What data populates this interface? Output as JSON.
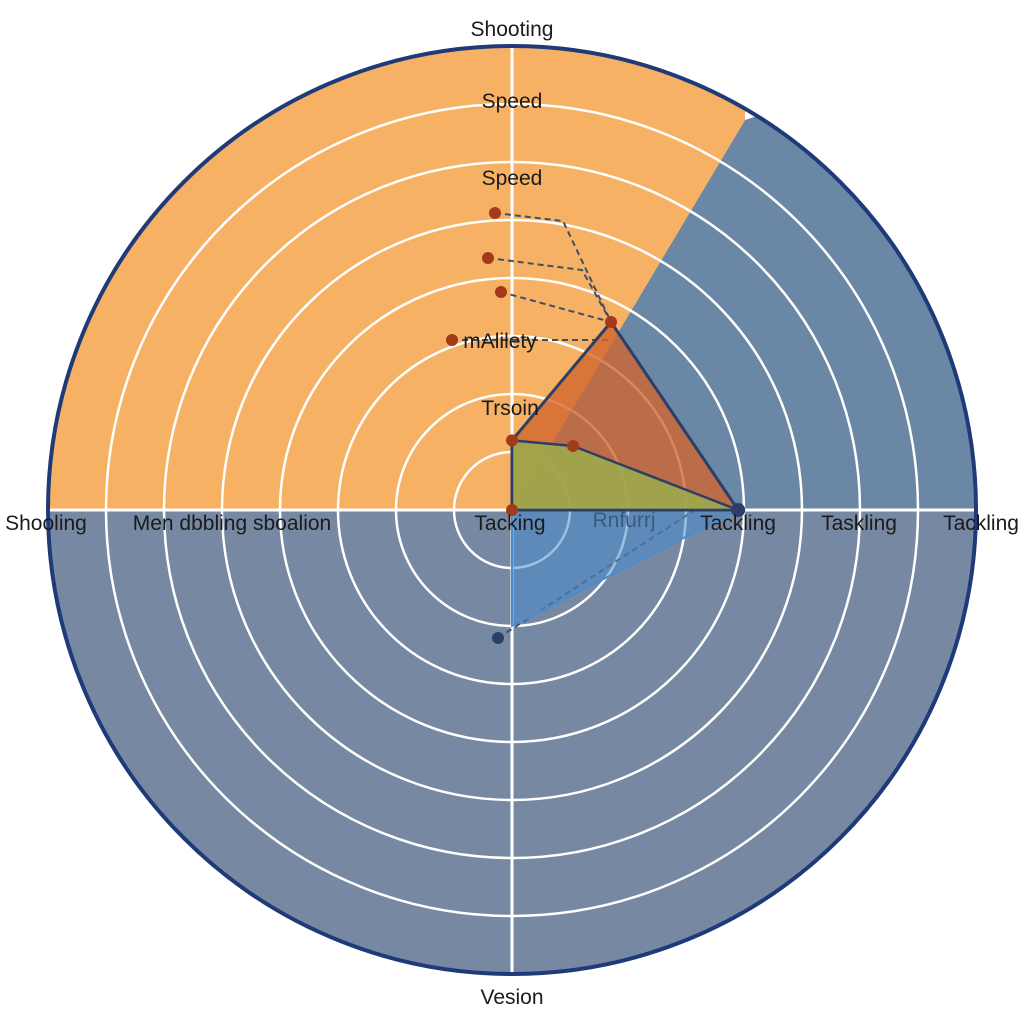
{
  "colors": {
    "orange_sector": "#f6b165",
    "blue_sector": "#6a88a6",
    "lower_half": "#7788a2",
    "outline": "#1f3a78",
    "grid": "#ffffff",
    "orange_series": "#d2642e",
    "blue_series": "#4a8ccd",
    "marker_red": "#a33a1a",
    "marker_navy": "#2b3f68",
    "dash": "#3f4f66"
  },
  "labels": {
    "top": "Shooting",
    "bottom": "Vesion",
    "left": "Shooling",
    "left_inner": "Men dbbling sboalion",
    "center": "Tacking",
    "center_right": "Rnfurrj",
    "right_1": "Tackling",
    "right_2": "Taskling",
    "right_3": "Tackling",
    "speed_1": "Speed",
    "speed_2": "Speed",
    "agility": "mAlilety",
    "trsoin": "Trsoin"
  },
  "chart_data": {
    "type": "radar",
    "axes": [
      "Shooting",
      "Tackling",
      "Vesion",
      "Shooling"
    ],
    "rlim": [
      0,
      8
    ],
    "series": [
      {
        "values": [
          1.2,
          3.9,
          0,
          0
        ]
      },
      {
        "values": [
          1.2,
          3.9,
          2.0,
          0
        ]
      }
    ],
    "grid": true
  }
}
